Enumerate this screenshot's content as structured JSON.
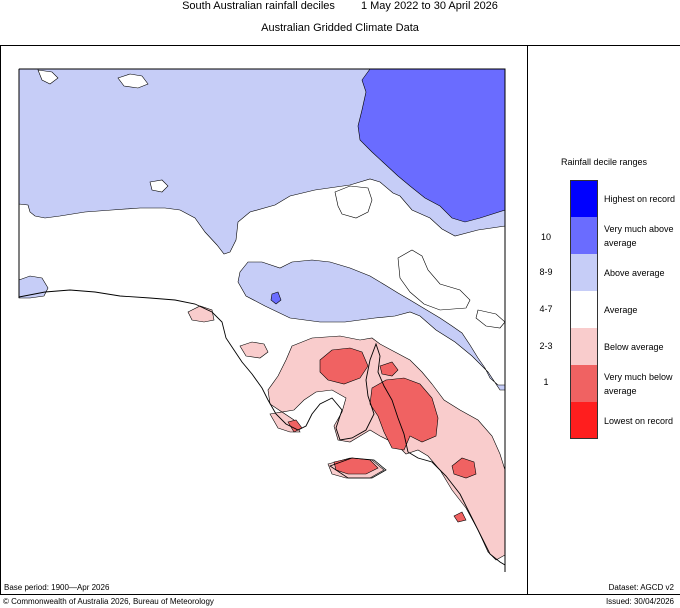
{
  "header": {
    "title": "South Australian rainfall deciles",
    "period": "1 May 2022 to 30 April 2026",
    "subtitle": "Australian Gridded Climate Data"
  },
  "legend": {
    "title": "Rainfall decile ranges",
    "items": [
      {
        "label": "Highest on record",
        "range": "",
        "color": "#0000ff"
      },
      {
        "label": "Very much above average",
        "range": "10",
        "color": "#6a6cff"
      },
      {
        "label": "Above average",
        "range": "8-9",
        "color": "#c6cdf7"
      },
      {
        "label": "Average",
        "range": "4-7",
        "color": "#ffffff"
      },
      {
        "label": "Below average",
        "range": "2-3",
        "color": "#f9cccc"
      },
      {
        "label": "Very much below average",
        "range": "1",
        "color": "#f06262"
      },
      {
        "label": "Lowest on record",
        "range": "",
        "color": "#ff1e1e"
      }
    ]
  },
  "footer": {
    "base_period": "Base period: 1900—Apr 2026",
    "dataset": "Dataset: AGCD v2",
    "copyright": "© Commonwealth of Australia 2026, Bureau of Meteorology",
    "issued": "Issued: 30/04/2026"
  }
}
